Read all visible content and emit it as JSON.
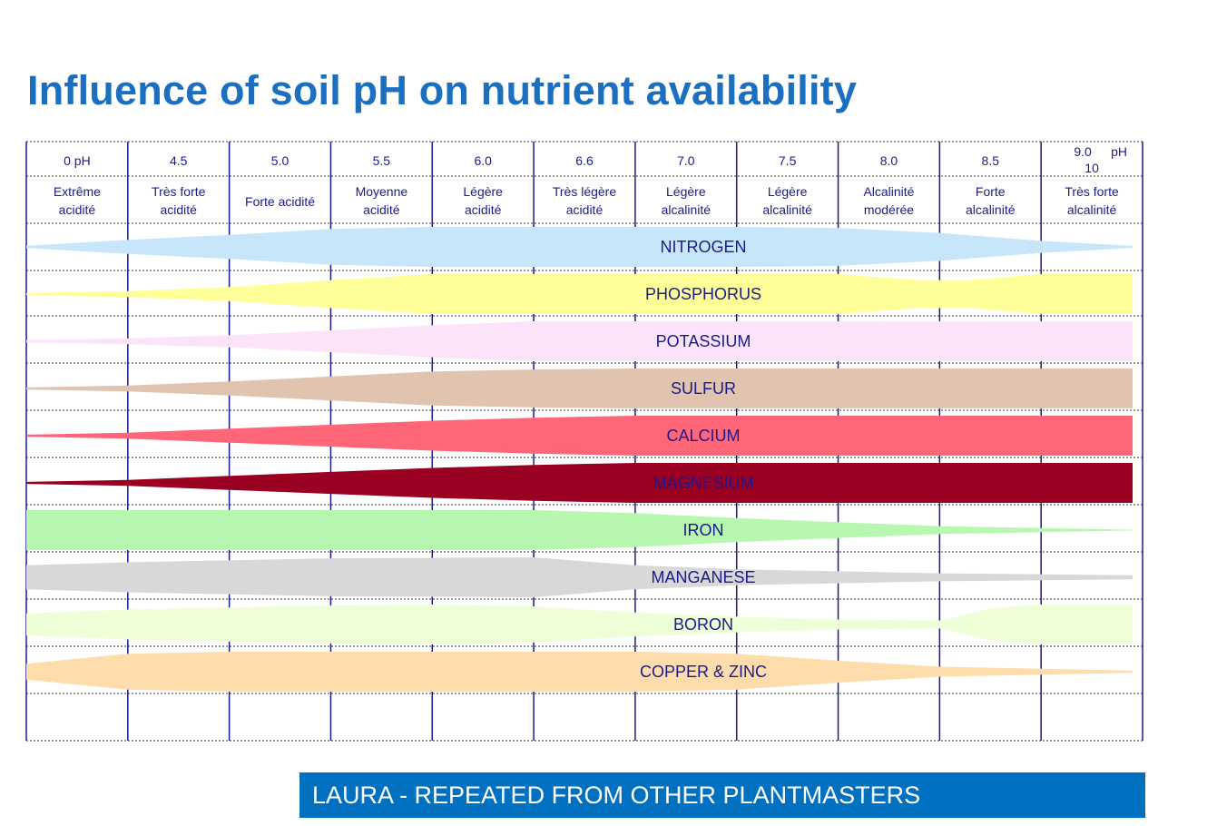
{
  "title": "Influence of soil pH on nutrient availability",
  "footer": "LAURA - REPEATED FROM OTHER PLANTMASTERS",
  "chart_data": {
    "type": "area",
    "title": "Influence of soil pH on nutrient availability",
    "columns": [
      {
        "tick": "0 pH",
        "desc": [
          "Extrême",
          "acidité"
        ]
      },
      {
        "tick": "4.5",
        "desc": [
          "Très forte",
          "acidité"
        ]
      },
      {
        "tick": "5.0",
        "desc": [
          "Forte acidité"
        ]
      },
      {
        "tick": "5.5",
        "desc": [
          "Moyenne",
          "acidité"
        ]
      },
      {
        "tick": "6.0",
        "desc": [
          "Légère",
          "acidité"
        ]
      },
      {
        "tick": "6.6",
        "desc": [
          "Très légère",
          "acidité"
        ]
      },
      {
        "tick": "7.0",
        "desc": [
          "Légère",
          "alcalinité"
        ]
      },
      {
        "tick": "7.5",
        "desc": [
          "Légère",
          "alcalinité"
        ]
      },
      {
        "tick": "8.0",
        "desc": [
          "Alcalinité",
          "modérée"
        ]
      },
      {
        "tick": "8.5",
        "desc": [
          "Forte",
          "alcalinité"
        ]
      },
      {
        "tick": "9.0",
        "tick2": "pH",
        "tick3": "10",
        "desc": [
          "Très forte",
          "alcalinité"
        ]
      }
    ],
    "series": [
      {
        "name": "NITROGEN",
        "color": "#c8e6fa",
        "label_color": "#1a1a8c",
        "profile": [
          [
            0,
            0.05
          ],
          [
            1,
            0.35
          ],
          [
            2,
            0.6
          ],
          [
            3,
            0.9
          ],
          [
            4,
            1
          ],
          [
            7,
            1
          ],
          [
            8,
            0.95
          ],
          [
            9,
            0.7
          ],
          [
            10,
            0.3
          ],
          [
            11,
            0.05
          ]
        ]
      },
      {
        "name": "PHOSPHORUS",
        "color": "#ffff99",
        "label_color": "#1a1a8c",
        "profile": [
          [
            0,
            0.05
          ],
          [
            1,
            0.15
          ],
          [
            2,
            0.35
          ],
          [
            3,
            0.7
          ],
          [
            4,
            1
          ],
          [
            8,
            1
          ],
          [
            8.8,
            0.7
          ],
          [
            9.3,
            0.7
          ],
          [
            10,
            1
          ],
          [
            11,
            1
          ]
        ]
      },
      {
        "name": "POTASSIUM",
        "color": "#fbe4fa",
        "label_color": "#1a1a8c",
        "profile": [
          [
            0,
            0.05
          ],
          [
            1,
            0.15
          ],
          [
            2,
            0.3
          ],
          [
            3,
            0.55
          ],
          [
            4,
            0.8
          ],
          [
            5,
            1
          ],
          [
            11,
            1
          ]
        ]
      },
      {
        "name": "SULFUR",
        "color": "#e0c4b0",
        "label_color": "#1a1a8c",
        "profile": [
          [
            0,
            0.05
          ],
          [
            1,
            0.15
          ],
          [
            2,
            0.35
          ],
          [
            3,
            0.6
          ],
          [
            4,
            0.85
          ],
          [
            5,
            0.95
          ],
          [
            6,
            1
          ],
          [
            11,
            1
          ]
        ]
      },
      {
        "name": "CALCIUM",
        "color": "#ff6677",
        "label_color": "#1a1a8c",
        "profile": [
          [
            0,
            0.05
          ],
          [
            1,
            0.15
          ],
          [
            2,
            0.35
          ],
          [
            3,
            0.55
          ],
          [
            4,
            0.75
          ],
          [
            5,
            0.9
          ],
          [
            6,
            1
          ],
          [
            11,
            1
          ]
        ]
      },
      {
        "name": "MAGNESIUM",
        "color": "#990022",
        "label_color": "#1a1a8c",
        "profile": [
          [
            0,
            0.05
          ],
          [
            1,
            0.15
          ],
          [
            2,
            0.35
          ],
          [
            3,
            0.55
          ],
          [
            4,
            0.75
          ],
          [
            5,
            0.9
          ],
          [
            6,
            1
          ],
          [
            11,
            1
          ]
        ]
      },
      {
        "name": "IRON",
        "color": "#b8f7b0",
        "label_color": "#1a1a8c",
        "profile": [
          [
            0,
            1
          ],
          [
            5,
            1
          ],
          [
            6,
            0.85
          ],
          [
            7,
            0.6
          ],
          [
            8,
            0.4
          ],
          [
            9,
            0.2
          ],
          [
            10,
            0.1
          ],
          [
            11,
            0.02
          ]
        ]
      },
      {
        "name": "MANGANESE",
        "color": "#d8d8d8",
        "label_color": "#1a1a8c",
        "profile": [
          [
            0,
            0.6
          ],
          [
            1,
            0.75
          ],
          [
            2,
            0.85
          ],
          [
            3,
            0.95
          ],
          [
            5,
            1
          ],
          [
            6,
            0.6
          ],
          [
            7,
            0.4
          ],
          [
            8,
            0.3
          ],
          [
            9,
            0.2
          ],
          [
            10,
            0.15
          ],
          [
            11,
            0.1
          ]
        ]
      },
      {
        "name": "BORON",
        "color": "#eeffd8",
        "label_color": "#1a1a8c",
        "profile": [
          [
            0,
            0.55
          ],
          [
            1,
            0.75
          ],
          [
            2,
            0.85
          ],
          [
            3,
            0.95
          ],
          [
            4,
            1
          ],
          [
            5,
            0.9
          ],
          [
            6,
            0.6
          ],
          [
            7,
            0.4
          ],
          [
            8,
            0.25
          ],
          [
            9,
            0.2
          ],
          [
            9.5,
            0.8
          ],
          [
            10,
            1
          ],
          [
            11,
            1
          ]
        ]
      },
      {
        "name": "COPPER & ZINC",
        "color": "#fedcac",
        "label_color": "#1a1a8c",
        "profile": [
          [
            0,
            0.4
          ],
          [
            1,
            0.9
          ],
          [
            2,
            1
          ],
          [
            6,
            1
          ],
          [
            7,
            0.9
          ],
          [
            8,
            0.55
          ],
          [
            9,
            0.25
          ],
          [
            10,
            0.15
          ],
          [
            11,
            0.05
          ]
        ]
      }
    ]
  }
}
